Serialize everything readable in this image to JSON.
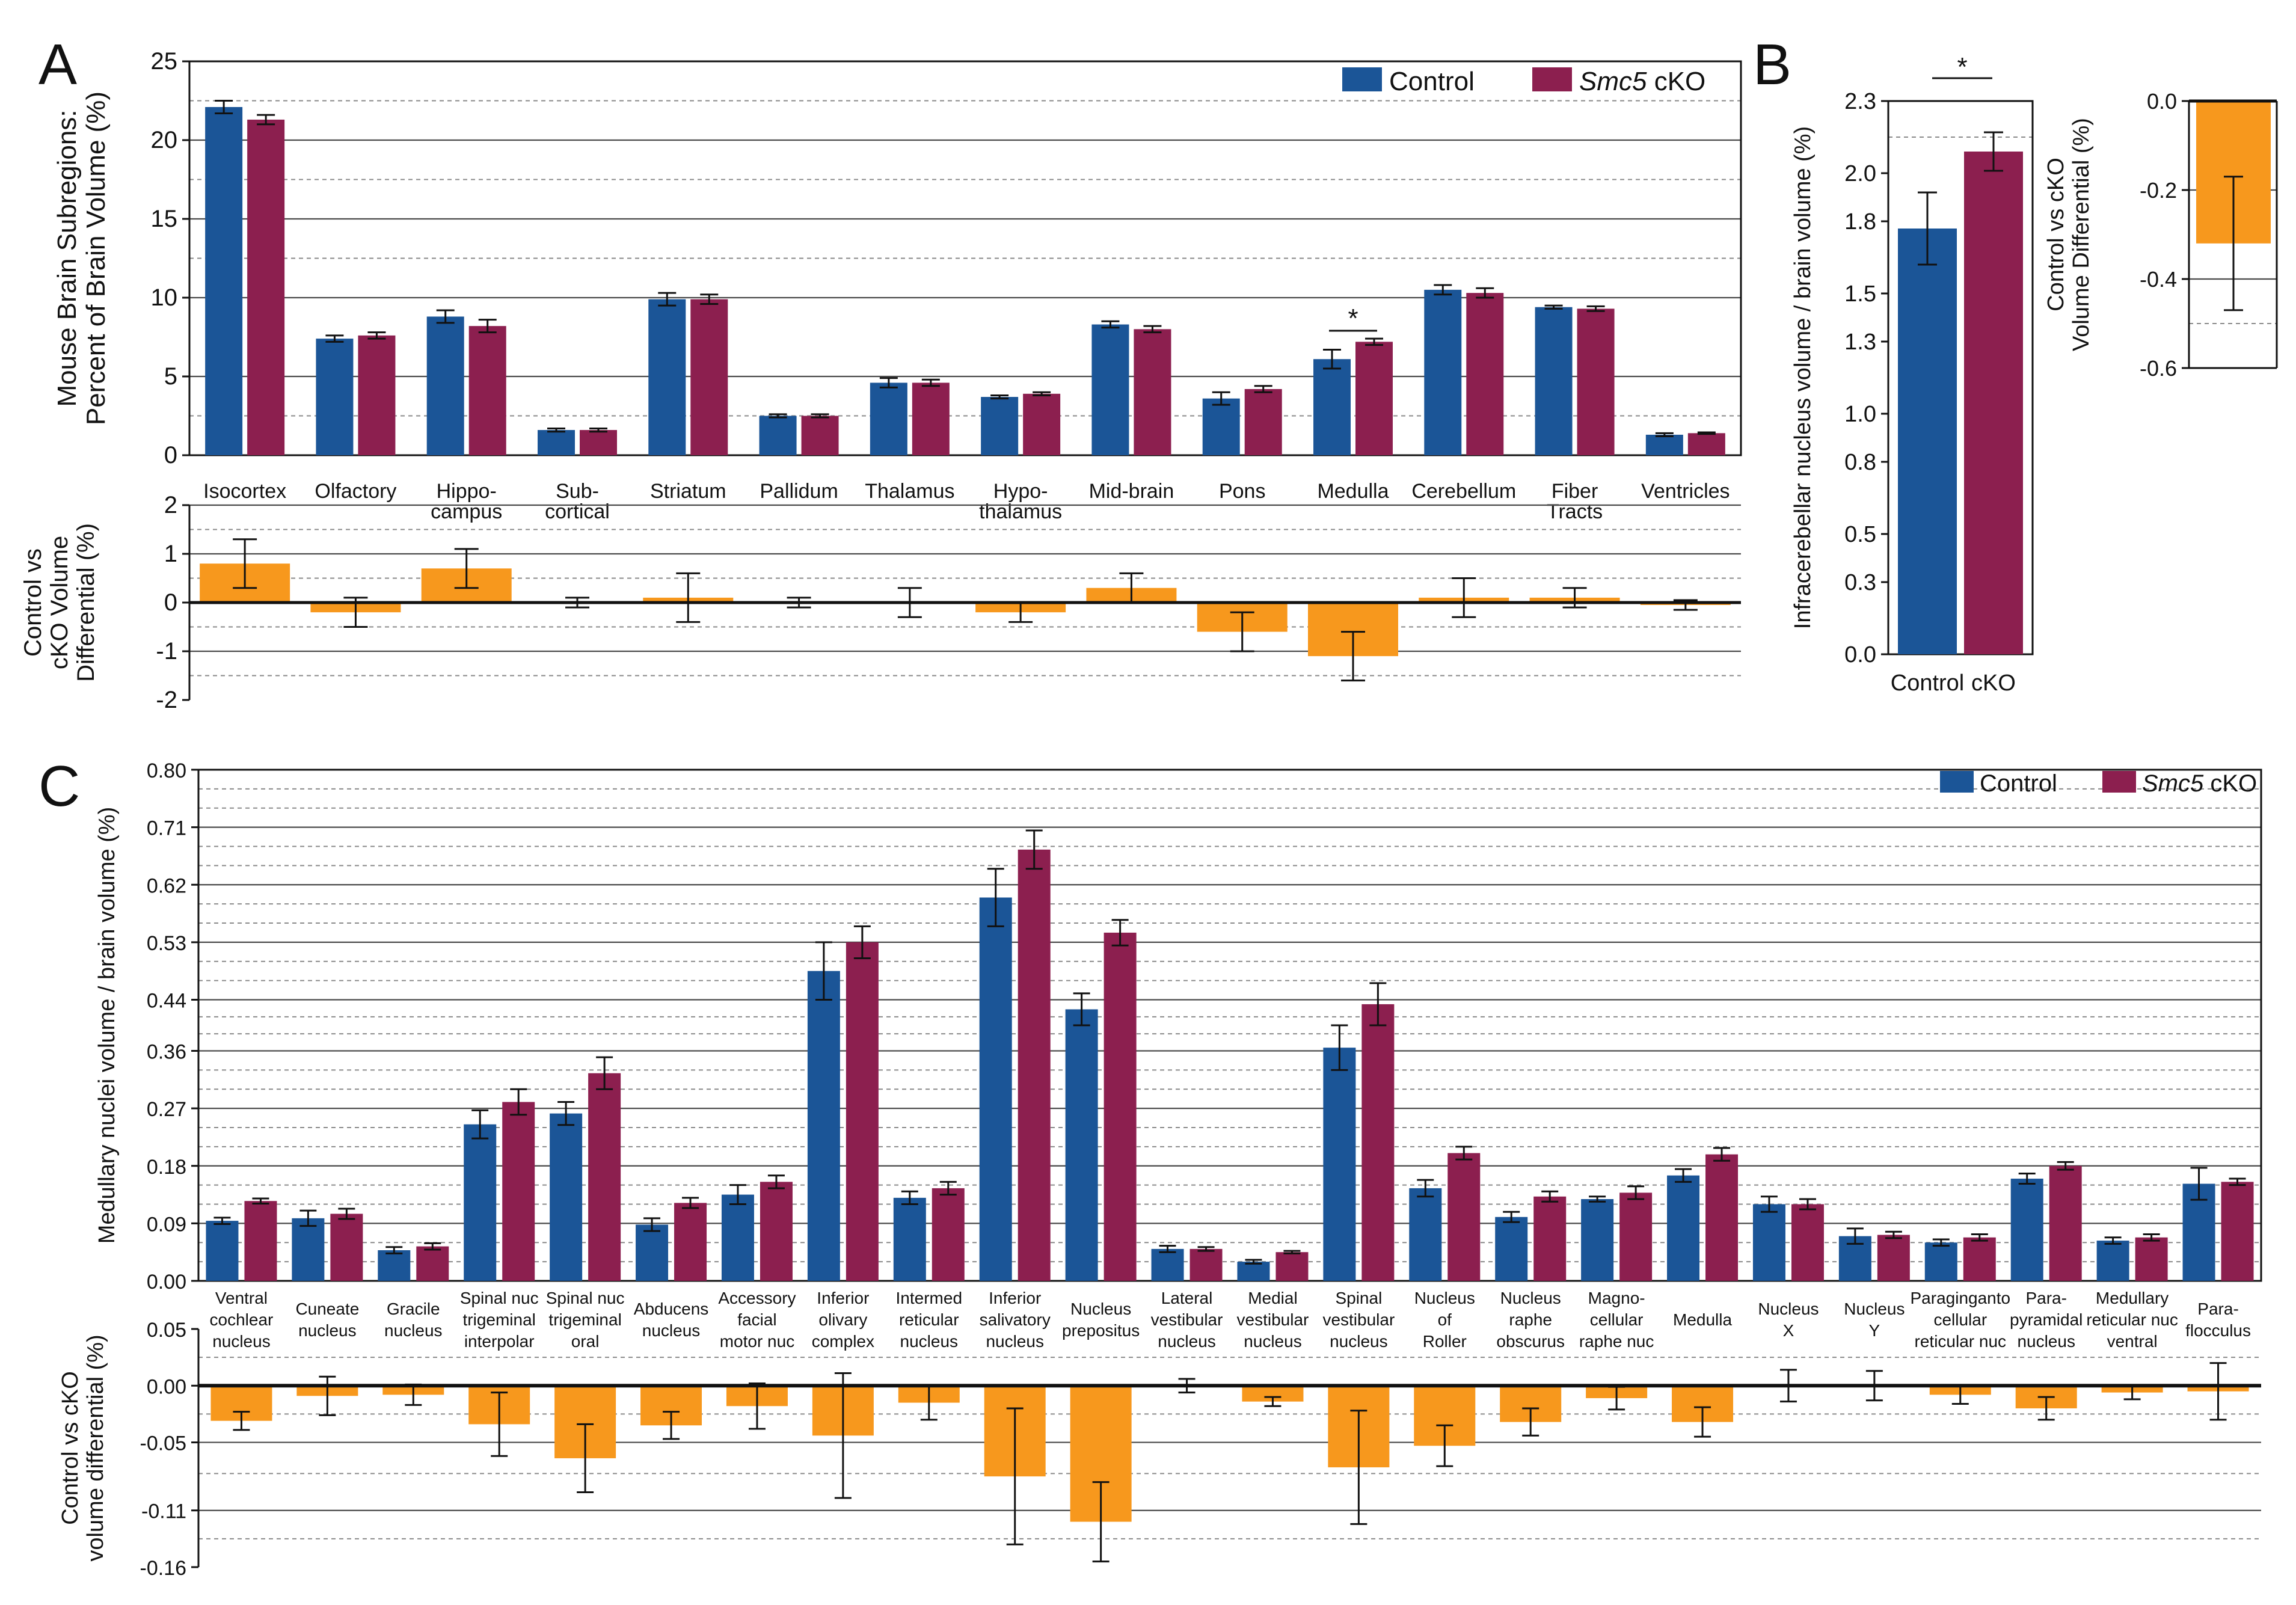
{
  "figure": {
    "panels": {
      "A": "A",
      "B": "B",
      "C": "C"
    },
    "legend": {
      "control": "Control",
      "cko_gene": "Smc5",
      "cko_suffix": " cKO"
    },
    "colors": {
      "control": "#1b5597",
      "cko": "#8c1f4f",
      "diff": "#f7981d",
      "axis": "#111111",
      "grid": "#555555"
    }
  },
  "chart_data": [
    {
      "id": "A-main",
      "type": "bar",
      "ylabel": [
        "Mouse Brain Subregions:",
        "Percent of Brain Volume (%)"
      ],
      "ylim": [
        0,
        25
      ],
      "yticks": [
        0,
        5,
        10,
        15,
        20,
        25
      ],
      "categories": [
        [
          "Isocortex"
        ],
        [
          "Olfactory"
        ],
        [
          "Hippo-",
          "campus"
        ],
        [
          "Sub-",
          "cortical"
        ],
        [
          "Striatum"
        ],
        [
          "Pallidum"
        ],
        [
          "Thalamus"
        ],
        [
          "Hypo-",
          "thalamus"
        ],
        [
          "Mid-brain"
        ],
        [
          "Pons"
        ],
        [
          "Medulla"
        ],
        [
          "Cerebellum"
        ],
        [
          "Fiber",
          "Tracts"
        ],
        [
          "Ventricles"
        ]
      ],
      "series": [
        {
          "name": "Control",
          "values": [
            22.1,
            7.4,
            8.8,
            1.6,
            9.9,
            2.5,
            4.6,
            3.7,
            8.3,
            3.6,
            6.1,
            10.5,
            9.4,
            1.3
          ],
          "errors": [
            0.4,
            0.2,
            0.4,
            0.1,
            0.4,
            0.1,
            0.3,
            0.1,
            0.2,
            0.4,
            0.6,
            0.3,
            0.1,
            0.1
          ]
        },
        {
          "name": "Smc5 cKO",
          "values": [
            21.3,
            7.6,
            8.2,
            1.6,
            9.9,
            2.5,
            4.6,
            3.9,
            8.0,
            4.2,
            7.2,
            10.3,
            9.3,
            1.4
          ],
          "errors": [
            0.3,
            0.2,
            0.4,
            0.1,
            0.3,
            0.1,
            0.2,
            0.1,
            0.2,
            0.2,
            0.2,
            0.3,
            0.15,
            0.05
          ]
        }
      ],
      "annotations": [
        {
          "category": "Medulla",
          "text": "*"
        }
      ]
    },
    {
      "id": "A-diff",
      "type": "bar",
      "ylabel": [
        "Control vs",
        "cKO Volume",
        "Differential (%)"
      ],
      "ylim": [
        -2,
        2
      ],
      "yticks": [
        -2,
        -1,
        0,
        1,
        2
      ],
      "values": [
        0.8,
        -0.2,
        0.7,
        0.0,
        0.1,
        0.0,
        0.0,
        -0.2,
        0.3,
        -0.6,
        -1.1,
        0.1,
        0.1,
        -0.05
      ],
      "errors": [
        0.5,
        0.3,
        0.4,
        0.1,
        0.5,
        0.1,
        0.3,
        0.2,
        0.3,
        0.4,
        0.5,
        0.4,
        0.2,
        0.1
      ]
    },
    {
      "id": "B-main",
      "type": "bar",
      "ylabel": [
        "Infracerebellar nucleus volume / brain volume (%)"
      ],
      "ylim": [
        0,
        2.3
      ],
      "yticks": [
        0.0,
        0.3,
        0.5,
        0.8,
        1.0,
        1.3,
        1.5,
        1.8,
        2.0,
        2.3
      ],
      "ytick_labels": [
        "0.0",
        "0.3",
        "0.5",
        "0.8",
        "1.0",
        "1.3",
        "1.5",
        "1.8",
        "2.0",
        "2.3"
      ],
      "categories": [
        "Control",
        "cKO"
      ],
      "values": [
        1.77,
        2.09
      ],
      "errors": [
        0.15,
        0.08
      ],
      "annotations": [
        {
          "text": "*"
        }
      ]
    },
    {
      "id": "B-diff",
      "type": "bar",
      "ylabel": [
        "Control vs cKO",
        "Volume Differential (%)"
      ],
      "ylim": [
        -0.6,
        0.0
      ],
      "yticks": [
        -0.6,
        -0.4,
        -0.2,
        0.0
      ],
      "ytick_labels": [
        "-0.6",
        "-0.4",
        "-0.2",
        "0.0"
      ],
      "values": [
        -0.32
      ],
      "errors": [
        0.15
      ]
    },
    {
      "id": "C-main",
      "type": "bar",
      "ylabel": [
        "Medullary nuclei volume / brain volume (%)"
      ],
      "ylim": [
        0,
        0.8
      ],
      "yticks": [
        0.0,
        0.09,
        0.18,
        0.27,
        0.36,
        0.44,
        0.53,
        0.62,
        0.71,
        0.8
      ],
      "ytick_labels": [
        "0.00",
        "0.09",
        "0.18",
        "0.27",
        "0.36",
        "0.44",
        "0.53",
        "0.62",
        "0.71",
        "0.80"
      ],
      "categories": [
        [
          "Ventral",
          "cochlear",
          "nucleus"
        ],
        [
          "Cuneate",
          "nucleus"
        ],
        [
          "Gracile",
          "nucleus"
        ],
        [
          "Spinal nuc",
          "trigeminal",
          "interpolar"
        ],
        [
          "Spinal nuc",
          "trigeminal",
          "oral"
        ],
        [
          "Abducens",
          "nucleus"
        ],
        [
          "Accessory",
          "facial",
          "motor nuc"
        ],
        [
          "Inferior",
          "olivary",
          "complex"
        ],
        [
          "Intermed",
          "reticular",
          "nucleus"
        ],
        [
          "Inferior",
          "salivatory",
          "nucleus"
        ],
        [
          "Nucleus",
          "prepositus"
        ],
        [
          "Lateral",
          "vestibular",
          "nucleus"
        ],
        [
          "Medial",
          "vestibular",
          "nucleus"
        ],
        [
          "Spinal",
          "vestibular",
          "nucleus"
        ],
        [
          "Nucleus",
          "of",
          "Roller"
        ],
        [
          "Nucleus",
          "raphe",
          "obscurus"
        ],
        [
          "Magno-",
          "cellular",
          "raphe nuc"
        ],
        [
          "Medulla"
        ],
        [
          "Nucleus",
          "X"
        ],
        [
          "Nucleus",
          "Y"
        ],
        [
          "Paraginganto",
          "cellular",
          "reticular nuc"
        ],
        [
          "Para-",
          "pyramidal",
          "nucleus"
        ],
        [
          "Medullary",
          "reticular nuc",
          "ventral"
        ],
        [
          "Para-",
          "flocculus"
        ]
      ],
      "series": [
        {
          "name": "Control",
          "values": [
            0.094,
            0.098,
            0.048,
            0.245,
            0.262,
            0.088,
            0.135,
            0.485,
            0.13,
            0.6,
            0.425,
            0.05,
            0.03,
            0.365,
            0.145,
            0.1,
            0.128,
            0.165,
            0.12,
            0.07,
            0.06,
            0.16,
            0.063,
            0.152
          ],
          "errors": [
            0.005,
            0.012,
            0.005,
            0.022,
            0.018,
            0.01,
            0.015,
            0.045,
            0.01,
            0.045,
            0.025,
            0.005,
            0.003,
            0.035,
            0.013,
            0.008,
            0.004,
            0.01,
            0.012,
            0.012,
            0.005,
            0.008,
            0.005,
            0.025
          ]
        },
        {
          "name": "Smc5 cKO",
          "values": [
            0.125,
            0.105,
            0.054,
            0.28,
            0.325,
            0.122,
            0.155,
            0.53,
            0.145,
            0.675,
            0.545,
            0.05,
            0.045,
            0.433,
            0.2,
            0.132,
            0.138,
            0.198,
            0.12,
            0.072,
            0.068,
            0.18,
            0.068,
            0.155
          ],
          "errors": [
            0.004,
            0.008,
            0.005,
            0.02,
            0.025,
            0.008,
            0.01,
            0.025,
            0.01,
            0.03,
            0.02,
            0.003,
            0.002,
            0.033,
            0.01,
            0.008,
            0.01,
            0.01,
            0.008,
            0.005,
            0.005,
            0.006,
            0.005,
            0.005
          ]
        }
      ]
    },
    {
      "id": "C-diff",
      "type": "bar",
      "ylabel": [
        "Control vs cKO",
        "volume differential (%)"
      ],
      "ylim": [
        -0.16,
        0.05
      ],
      "yticks": [
        -0.16,
        -0.11,
        -0.05,
        0.0,
        0.05
      ],
      "ytick_labels": [
        "-0.16",
        "-0.11",
        "-0.05",
        "0.00",
        "0.05"
      ],
      "values": [
        -0.031,
        -0.009,
        -0.008,
        -0.034,
        -0.064,
        -0.035,
        -0.018,
        -0.044,
        -0.015,
        -0.08,
        -0.12,
        0.0,
        -0.014,
        -0.072,
        -0.053,
        -0.032,
        -0.011,
        -0.032,
        0.0,
        0.0,
        -0.008,
        -0.02,
        -0.006,
        -0.005
      ],
      "errors": [
        0.008,
        0.017,
        0.009,
        0.028,
        0.03,
        0.012,
        0.02,
        0.055,
        0.015,
        0.06,
        0.035,
        0.006,
        0.004,
        0.05,
        0.018,
        0.012,
        0.01,
        0.013,
        0.014,
        0.013,
        0.008,
        0.01,
        0.006,
        0.025
      ]
    }
  ]
}
